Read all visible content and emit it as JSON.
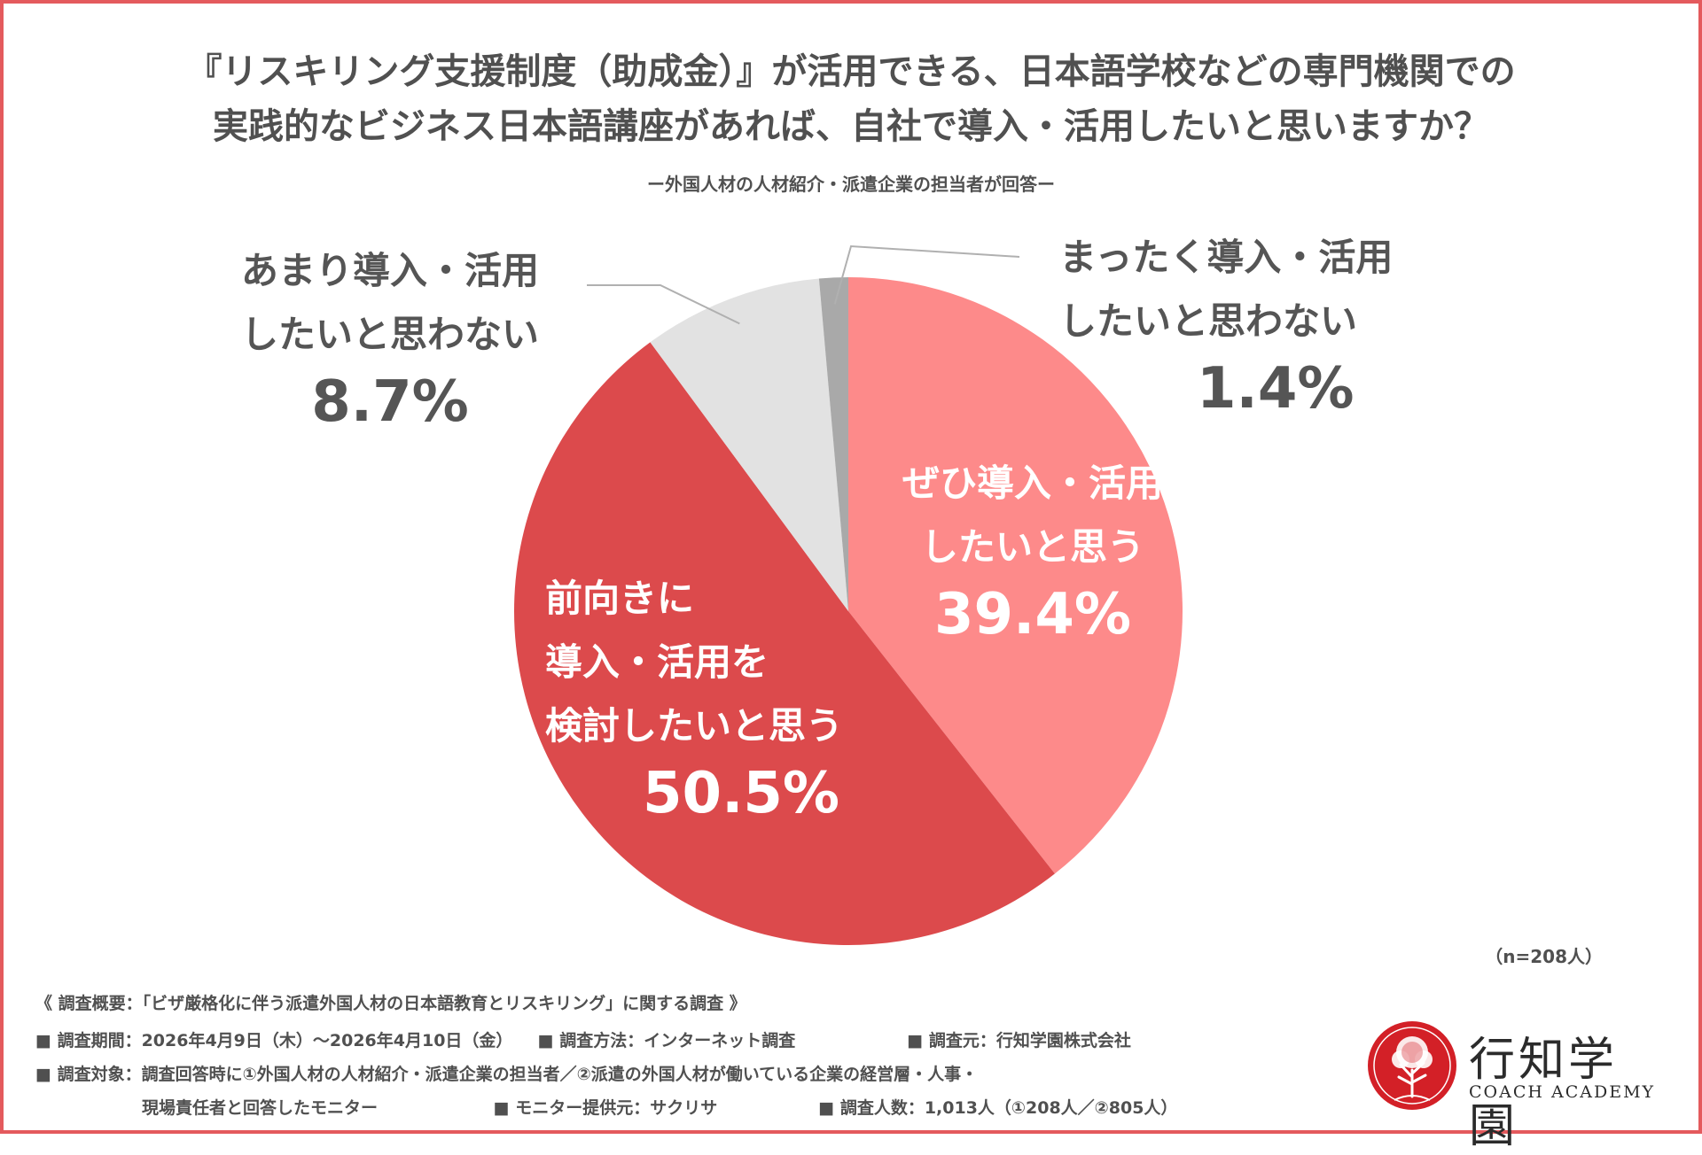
{
  "title_line1": "『リスキリング支援制度（助成金）』が活用できる、日本語学校などの専門機関での",
  "title_line2": "実践的なビジネス日本語講座があれば、自社で導入・活用したいと思いますか？",
  "subtitle": "ー外国人材の人材紹介・派遣企業の担当者が回答ー",
  "sample_size": "（n=208人）",
  "colors": {
    "accent_border": "#e45a5d",
    "slice_1": "#fd8a8a",
    "slice_2": "#dc4a4c",
    "slice_3": "#e2e2e2",
    "slice_4": "#a9a9a9"
  },
  "chart_data": {
    "type": "pie",
    "title": "『リスキリング支援制度（助成金）』が活用できる、日本語学校などの専門機関での実践的なビジネス日本語講座があれば、自社で導入・活用したいと思いますか？",
    "slices": [
      {
        "lines": [
          "ぜひ導入・活用",
          "したいと思う"
        ],
        "value": 39.4,
        "value_label": "39.4%",
        "color": "#fd8a8a"
      },
      {
        "lines": [
          "前向きに",
          "導入・活用を",
          "検討したいと思う"
        ],
        "value": 50.5,
        "value_label": "50.5%",
        "color": "#dc4a4c"
      },
      {
        "lines": [
          "あまり導入・活用",
          "したいと思わない"
        ],
        "value": 8.7,
        "value_label": "8.7%",
        "color": "#e2e2e2"
      },
      {
        "lines": [
          "まったく導入・活用",
          "したいと思わない"
        ],
        "value": 1.4,
        "value_label": "1.4%",
        "color": "#a9a9a9"
      }
    ]
  },
  "footer": {
    "line1": "《 調査概要：「ビザ厳格化に伴う派遣外国人材の日本語教育とリスキリング」に関する調査 》",
    "period": "■ 調査期間：2026年4月9日（木）～2026年4月10日（金）",
    "method": "■ 調査方法：インターネット調査",
    "source": "■ 調査元：行知学園株式会社",
    "target_line1": "■ 調査対象：調査回答時に①外国人材の人材紹介・派遣企業の担当者／②派遣の外国人材が働いている企業の経営層・人事・",
    "target_line2": "現場責任者と回答したモニター",
    "provider": "■ モニター提供元：サクリサ",
    "respondents": "■ 調査人数：1,013人（①208人／②805人）"
  },
  "logo": {
    "name_jp": "行知学園",
    "name_en": "COACH ACADEMY",
    "seal_text": "COACH ACADEMY"
  }
}
